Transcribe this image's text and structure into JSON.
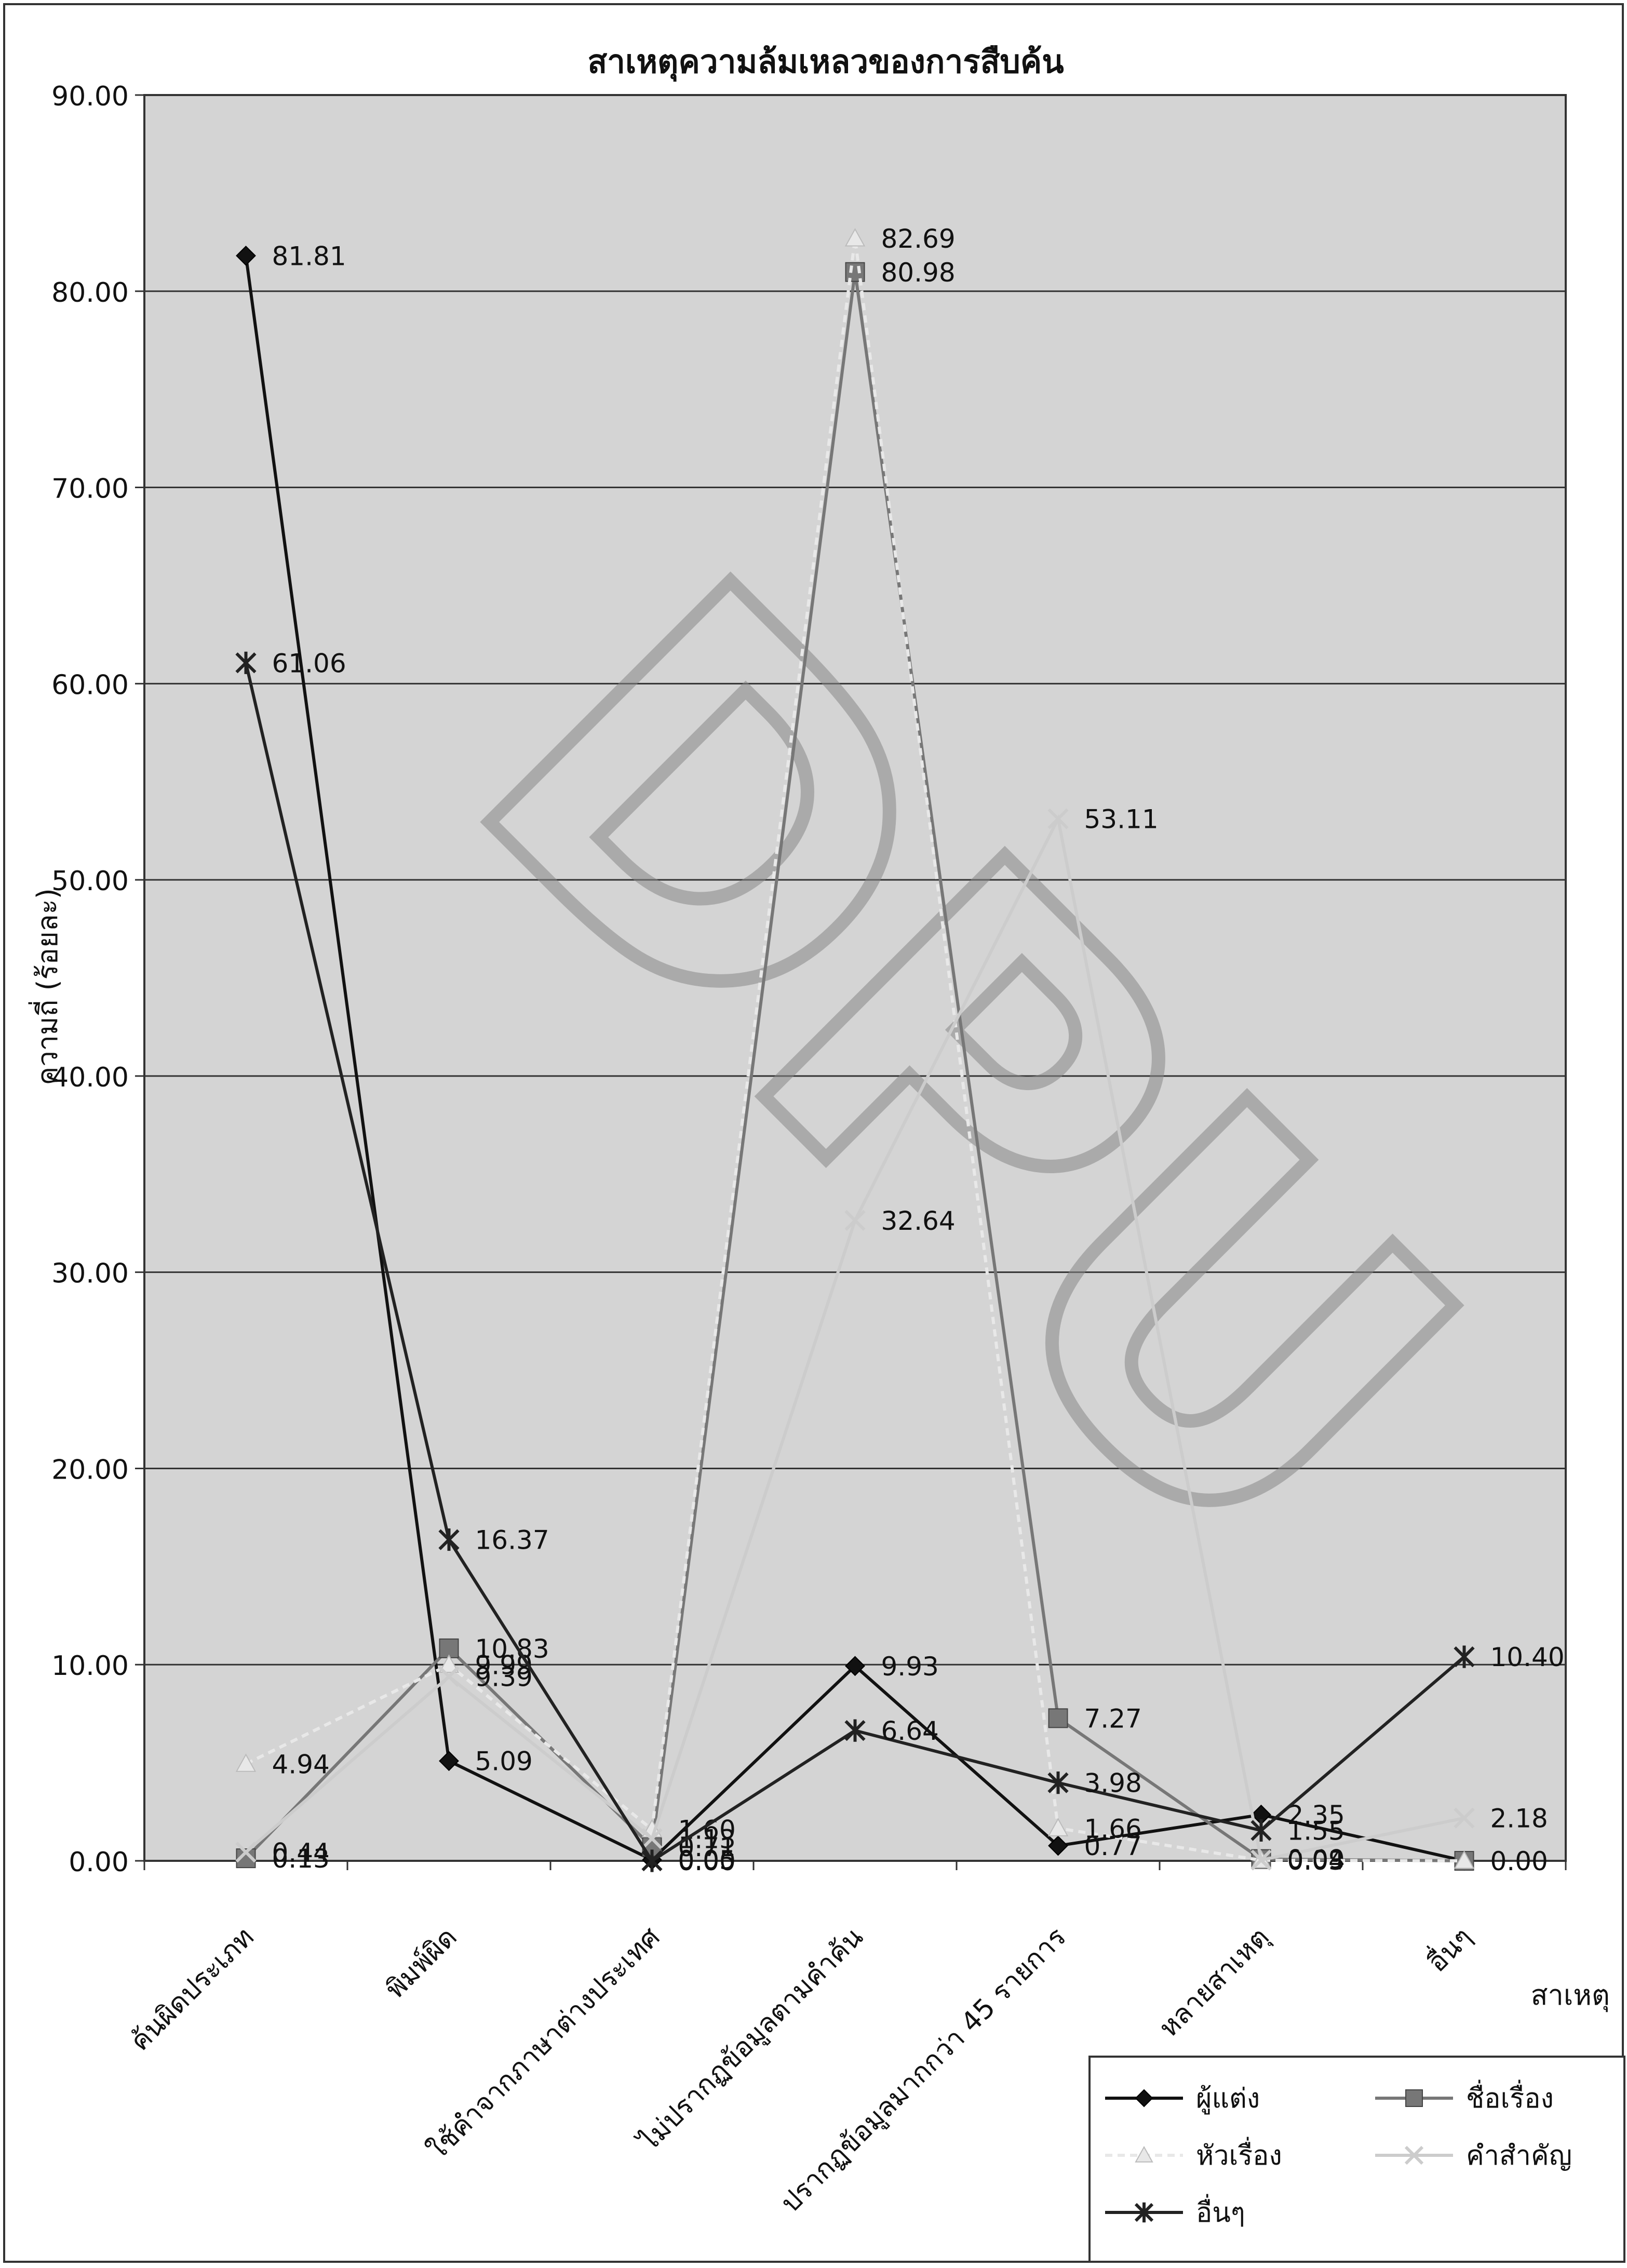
{
  "chart_data": {
    "type": "line",
    "title": "สาเหตุความล้มเหลวของการสืบค้น",
    "ylabel": "ความถี่ (ร้อยละ)",
    "xlabel": "สาเหตุ",
    "ylim": [
      0,
      90
    ],
    "yticks": [
      "0.00",
      "10.00",
      "20.00",
      "30.00",
      "40.00",
      "50.00",
      "60.00",
      "70.00",
      "80.00",
      "90.00"
    ],
    "grid": true,
    "legend_position": "bottom-right",
    "categories": [
      "ค้นผิดประเภท",
      "พิมพ์ผิด",
      "ใช้คำจากภาษาต่างประเทศ",
      "ไม่ปรากฏข้อมูลตามคำค้น",
      "ปรากฏข้อมูลมากกว่า 45 รายการ",
      "หลายสาเหตุ",
      "อื่นๆ"
    ],
    "series": [
      {
        "name": "ผู้แต่ง",
        "values": [
          81.81,
          5.09,
          0.05,
          9.93,
          0.77,
          2.35,
          0.0
        ],
        "labels": [
          "81.81",
          "5.09",
          "0.05",
          "9.93",
          "0.77",
          "2.35",
          ""
        ],
        "color": "#111111",
        "marker": "diamond",
        "dash": ""
      },
      {
        "name": "ชื่อเรื่อง",
        "values": [
          0.13,
          10.83,
          0.71,
          80.98,
          7.27,
          0.09,
          0.0
        ],
        "labels": [
          "0.13",
          "10.83",
          "0.71",
          "80.98",
          "7.27",
          "0.09",
          ""
        ],
        "color": "#777777",
        "marker": "square",
        "dash": ""
      },
      {
        "name": "หัวเรื่อง",
        "values": [
          4.94,
          9.99,
          1.6,
          82.69,
          1.66,
          0.03,
          0.0
        ],
        "labels": [
          "4.94",
          "9.99",
          "1.60",
          "82.69",
          "1.66",
          "0.03",
          "0.00"
        ],
        "color": "#e8e8e8",
        "marker": "triangle",
        "dash": "14,10"
      },
      {
        "name": "คำสำคัญ",
        "values": [
          0.44,
          9.39,
          1.13,
          32.64,
          53.11,
          0.04,
          2.18
        ],
        "labels": [
          "0.44",
          "9.39",
          "1.13",
          "32.64",
          "53.11",
          "0.04",
          "2.18"
        ],
        "color": "#cccccc",
        "marker": "x",
        "dash": ""
      },
      {
        "name": "อื่นๆ",
        "values": [
          61.06,
          16.37,
          0.0,
          6.64,
          3.98,
          1.55,
          10.4
        ],
        "labels": [
          "61.06",
          "16.37",
          "0.00",
          "6.64",
          "3.98",
          "1.55",
          "10.40"
        ],
        "color": "#222222",
        "marker": "star",
        "dash": ""
      }
    ],
    "annotations": [
      "DPU"
    ]
  }
}
